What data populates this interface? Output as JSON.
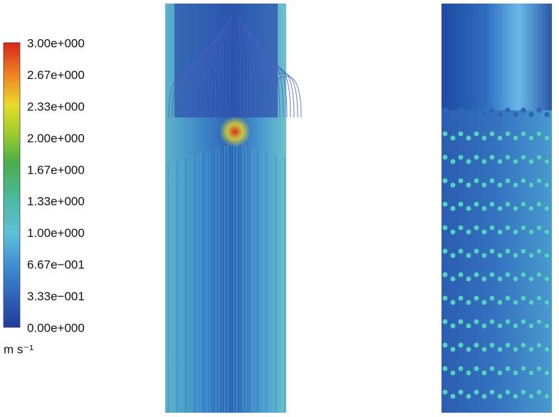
{
  "colorbar": {
    "ticks": [
      "3.00e+000",
      "2.67e+000",
      "2.33e+000",
      "2.00e+000",
      "1.67e+000",
      "1.33e+000",
      "1.00e+000",
      "6.67e−001",
      "3.33e−001",
      "0.00e+000"
    ],
    "unit": "m s⁻¹"
  }
}
